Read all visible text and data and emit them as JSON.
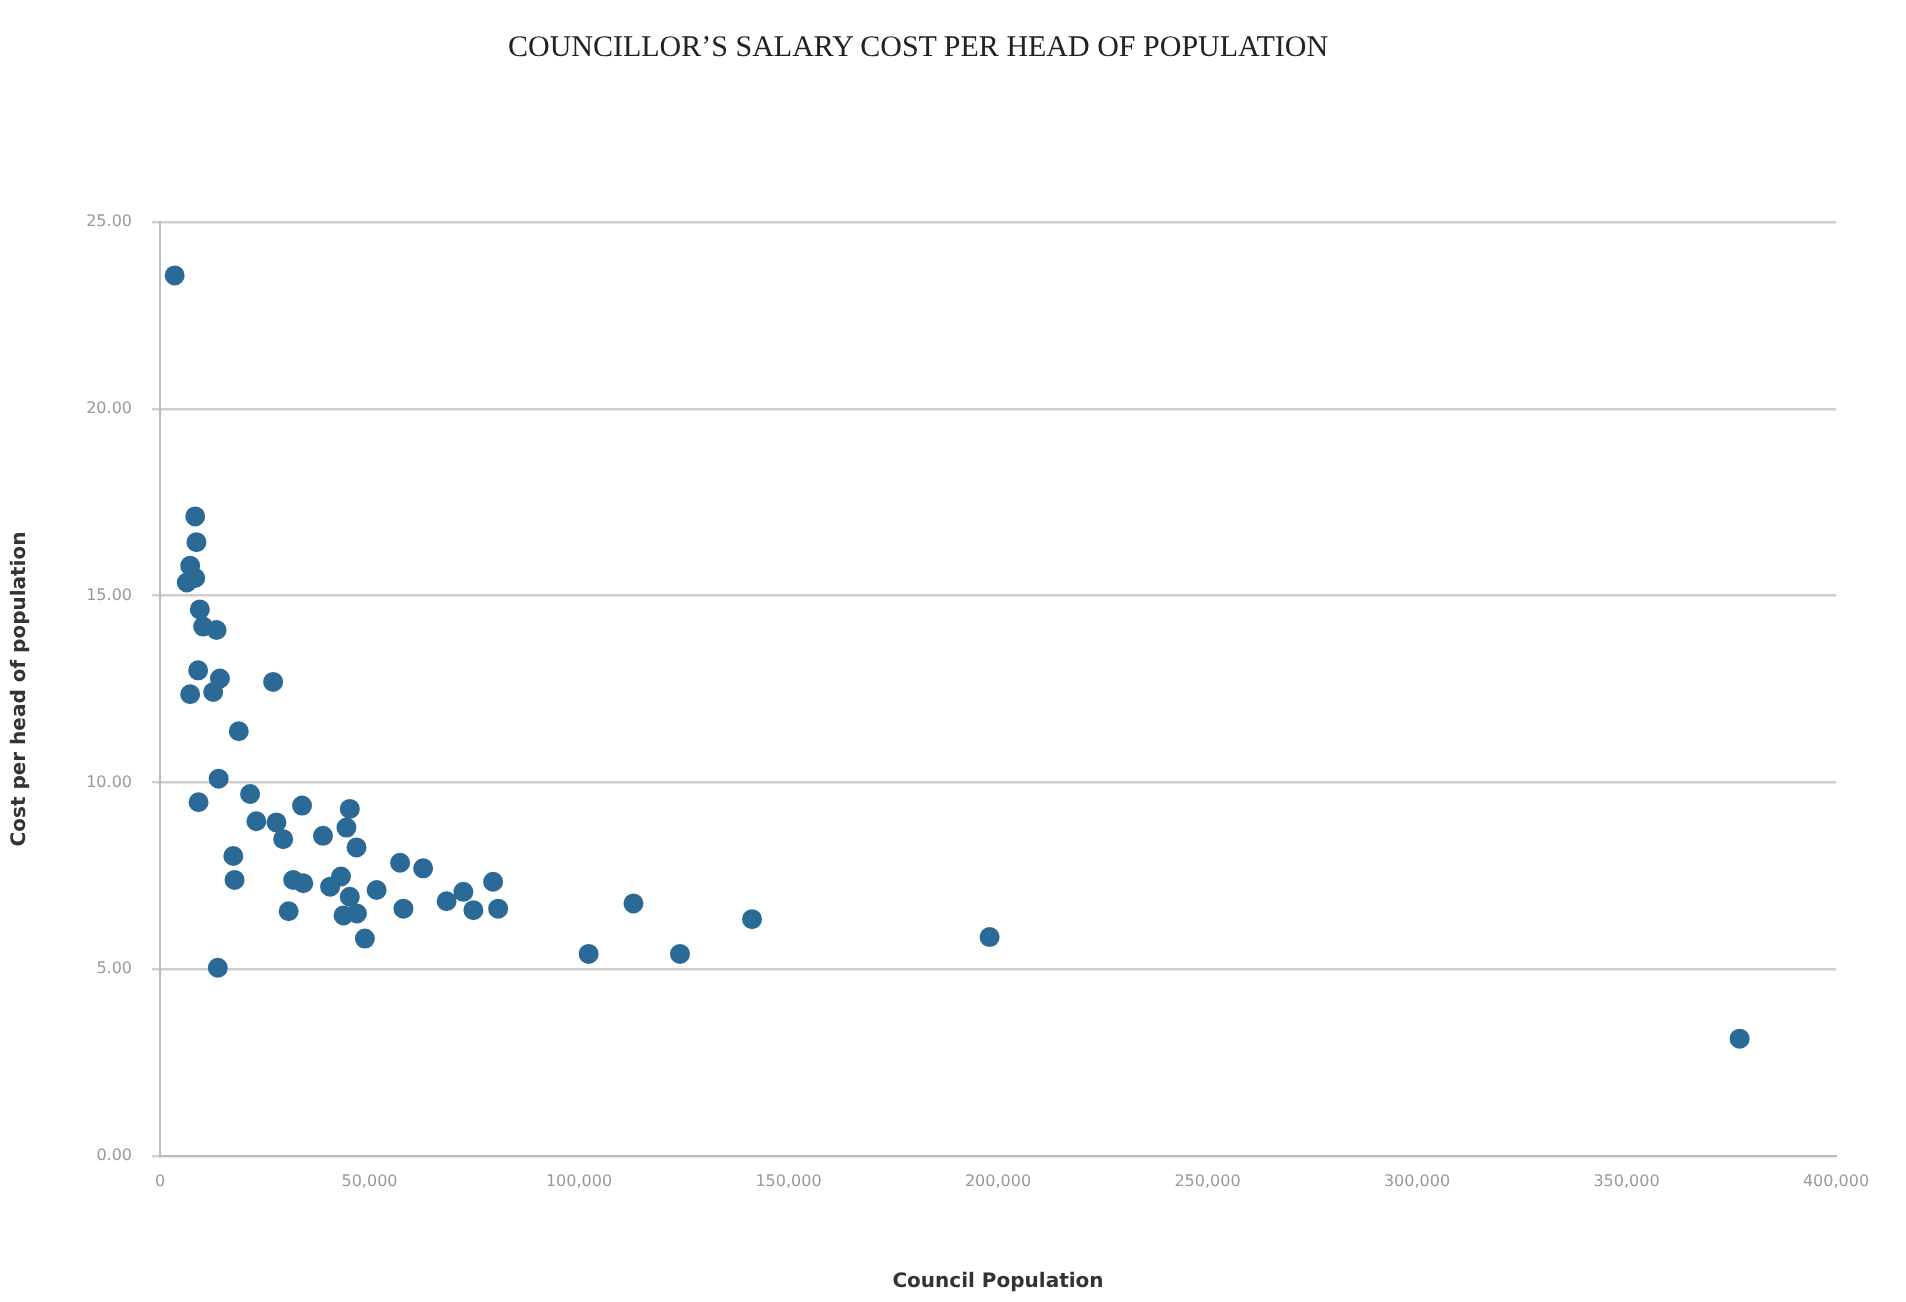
{
  "chart_data": {
    "type": "scatter",
    "title": "COUNCILLOR’S SALARY COST PER HEAD OF POPULATION",
    "xlabel": "Council Population",
    "ylabel": "Cost per head of population",
    "x": [
      3500,
      8400,
      8700,
      7200,
      8400,
      6400,
      9500,
      10300,
      12200,
      13500,
      9100,
      14300,
      7200,
      12700,
      27000,
      18800,
      14000,
      9200,
      21500,
      23000,
      27800,
      29400,
      33900,
      45300,
      44500,
      38900,
      46900,
      17500,
      17800,
      31800,
      34200,
      40600,
      43200,
      45300,
      51700,
      57300,
      62800,
      79500,
      72400,
      68400,
      74800,
      80700,
      58100,
      30700,
      43800,
      47000,
      48900,
      13800,
      113000,
      102300,
      124100,
      141300,
      198000,
      377000
    ],
    "series": [
      {
        "color": "#2b6a96",
        "values": [
          23.57,
          17.12,
          16.43,
          15.8,
          15.47,
          15.35,
          14.63,
          14.17,
          null,
          14.08,
          13.0,
          12.78,
          12.36,
          12.42,
          12.69,
          11.37,
          10.1,
          9.47,
          9.69,
          8.96,
          8.93,
          8.48,
          9.38,
          9.29,
          8.79,
          8.57,
          8.26,
          8.03,
          7.39,
          7.39,
          7.3,
          7.21,
          7.48,
          6.94,
          7.12,
          7.85,
          7.7,
          7.34,
          7.07,
          6.82,
          6.58,
          6.62,
          6.62,
          6.55,
          6.44,
          6.49,
          5.82,
          5.04,
          6.76,
          5.41,
          5.41,
          6.34,
          5.86,
          3.14
        ]
      }
    ],
    "xlim": [
      0,
      400000
    ],
    "xticks": [
      {
        "value": 0,
        "label": "0"
      },
      {
        "value": 50000,
        "label": "50,000"
      },
      {
        "value": 100000,
        "label": "100,000"
      },
      {
        "value": 150000,
        "label": "150,000"
      },
      {
        "value": 200000,
        "label": "200,000"
      },
      {
        "value": 250000,
        "label": "250,000"
      },
      {
        "value": 300000,
        "label": "300,000"
      },
      {
        "value": 350000,
        "label": "350,000"
      },
      {
        "value": 400000,
        "label": "400,000"
      }
    ],
    "ylim": [
      0,
      25
    ],
    "yticks": [
      {
        "value": 0,
        "label": "0.00"
      },
      {
        "value": 5,
        "label": "5.00"
      },
      {
        "value": 10,
        "label": "10.00"
      },
      {
        "value": 15,
        "label": "15.00"
      },
      {
        "value": 20,
        "label": "20.00"
      },
      {
        "value": 25,
        "label": "25.00"
      }
    ],
    "grid": "y",
    "marker": "circle",
    "legend": false
  }
}
